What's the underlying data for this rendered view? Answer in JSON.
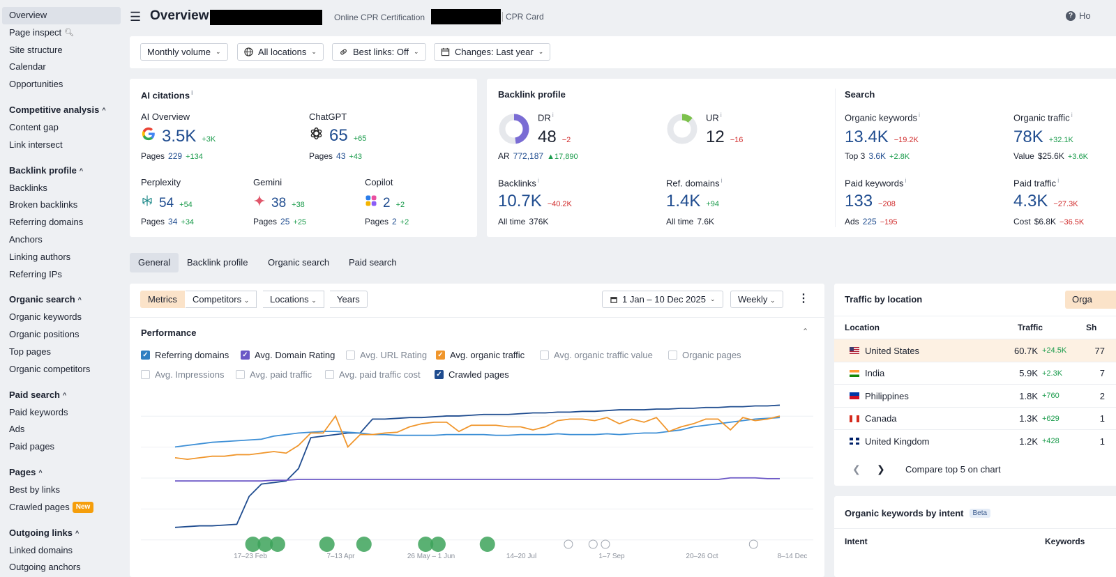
{
  "sidebar": {
    "items": [
      {
        "label": "Overview",
        "active": true
      },
      {
        "label": "Page inspect",
        "icon": "search-icon"
      },
      {
        "label": "Site structure"
      },
      {
        "label": "Calendar"
      },
      {
        "label": "Opportunities"
      }
    ],
    "sections": [
      {
        "title": "Competitive analysis",
        "items": [
          "Content gap",
          "Link intersect"
        ]
      },
      {
        "title": "Backlink profile",
        "items": [
          "Backlinks",
          "Broken backlinks",
          "Referring domains",
          "Anchors",
          "Linking authors",
          "Referring IPs"
        ]
      },
      {
        "title": "Organic search",
        "items": [
          "Organic keywords",
          "Organic positions",
          "Top pages",
          "Organic competitors"
        ]
      },
      {
        "title": "Paid search",
        "items": [
          "Paid keywords",
          "Ads",
          "Paid pages"
        ]
      },
      {
        "title": "Pages",
        "items": [
          "Best by links",
          "Crawled pages"
        ]
      },
      {
        "title": "Outgoing links",
        "items": [
          "Linked domains",
          "Outgoing anchors"
        ]
      }
    ],
    "new_badge": "New"
  },
  "header": {
    "title": "Overview:",
    "subtitle1": "Online CPR Certification",
    "subtitle2": "CPR Card",
    "help": "Ho"
  },
  "filters": {
    "volume": "Monthly volume",
    "locations": "All locations",
    "best_links": "Best links: Off",
    "changes": "Changes: Last year"
  },
  "ai_citations": {
    "title": "AI citations",
    "ai_overview": {
      "label": "AI Overview",
      "value": "3.5K",
      "delta": "+3K",
      "pages_label": "Pages",
      "pages": "229",
      "pages_delta": "+134"
    },
    "chatgpt": {
      "label": "ChatGPT",
      "value": "65",
      "delta": "+65",
      "pages_label": "Pages",
      "pages": "43",
      "pages_delta": "+43"
    },
    "perplexity": {
      "label": "Perplexity",
      "value": "54",
      "delta": "+54",
      "pages_label": "Pages",
      "pages": "34",
      "pages_delta": "+34"
    },
    "gemini": {
      "label": "Gemini",
      "value": "38",
      "delta": "+38",
      "pages_label": "Pages",
      "pages": "25",
      "pages_delta": "+25"
    },
    "copilot": {
      "label": "Copilot",
      "value": "2",
      "delta": "+2",
      "pages_label": "Pages",
      "pages": "2",
      "pages_delta": "+2"
    }
  },
  "backlink_profile": {
    "title": "Backlink profile",
    "dr": {
      "label": "DR",
      "value": "48",
      "delta": "−2",
      "ar_label": "AR",
      "ar": "772,187",
      "ar_delta": "▲17,890",
      "fill": 0.48
    },
    "ur": {
      "label": "UR",
      "value": "12",
      "delta": "−16",
      "fill": 0.12
    },
    "backlinks": {
      "label": "Backlinks",
      "value": "10.7K",
      "delta": "−40.2K",
      "sub_label": "All time",
      "sub": "376K"
    },
    "ref_domains": {
      "label": "Ref. domains",
      "value": "1.4K",
      "delta": "+94",
      "sub_label": "All time",
      "sub": "7.6K"
    }
  },
  "search": {
    "title": "Search",
    "organic_keywords": {
      "label": "Organic keywords",
      "value": "13.4K",
      "delta": "−19.2K",
      "sub_label": "Top 3",
      "sub": "3.6K",
      "sub_delta": "+2.8K"
    },
    "organic_traffic": {
      "label": "Organic traffic",
      "value": "78K",
      "delta": "+32.1K",
      "sub_label": "Value",
      "sub": "$25.6K",
      "sub_delta": "+3.6K"
    },
    "paid_keywords": {
      "label": "Paid keywords",
      "value": "133",
      "delta": "−208",
      "sub_label": "Ads",
      "sub": "225",
      "sub_delta": "−195"
    },
    "paid_traffic": {
      "label": "Paid traffic",
      "value": "4.3K",
      "delta": "−27.3K",
      "sub_label": "Cost",
      "sub": "$6.8K",
      "sub_delta": "−36.5K"
    }
  },
  "tabs": [
    "General",
    "Backlink profile",
    "Organic search",
    "Paid search"
  ],
  "chart_toolbar": {
    "metrics": "Metrics",
    "competitors": "Competitors",
    "locations": "Locations",
    "years": "Years",
    "date_range": "1 Jan – 10 Dec 2025",
    "interval": "Weekly"
  },
  "performance": {
    "title": "Performance",
    "legend": [
      {
        "label": "Referring domains",
        "checked": true,
        "color": "#2f7fc1"
      },
      {
        "label": "Avg. Domain Rating",
        "checked": true,
        "color": "#6b57c6"
      },
      {
        "label": "Avg. URL Rating",
        "checked": false,
        "color": "#c6cbd3"
      },
      {
        "label": "Avg. organic traffic",
        "checked": true,
        "color": "#f0962c"
      },
      {
        "label": "Avg. organic traffic value",
        "checked": false,
        "color": "#c6cbd3"
      },
      {
        "label": "Organic pages",
        "checked": false,
        "color": "#c6cbd3"
      },
      {
        "label": "Avg. Impressions",
        "checked": false,
        "color": "#c6cbd3"
      },
      {
        "label": "Avg. paid traffic",
        "checked": false,
        "color": "#c6cbd3"
      },
      {
        "label": "Avg. paid traffic cost",
        "checked": false,
        "color": "#c6cbd3"
      },
      {
        "label": "Crawled pages",
        "checked": true,
        "color": "#1f4c8f"
      }
    ]
  },
  "chart_data": {
    "type": "line",
    "x": [
      "w1",
      "w2",
      "w3",
      "w4",
      "w5",
      "w6",
      "w7",
      "w8",
      "w9",
      "w10",
      "w11",
      "w12",
      "w13",
      "w14",
      "w15",
      "w16",
      "w17",
      "w18",
      "w19",
      "w20",
      "w21",
      "w22",
      "w23",
      "w24",
      "w25",
      "w26",
      "w27",
      "w28",
      "w29",
      "w30",
      "w31",
      "w32",
      "w33",
      "w34",
      "w35",
      "w36",
      "w37",
      "w38",
      "w39",
      "w40",
      "w41",
      "w42",
      "w43",
      "w44",
      "w45",
      "w46",
      "w47",
      "w48",
      "w49",
      "w50"
    ],
    "tick_labels": [
      "17–23 Feb",
      "7–13 Apr",
      "26 May – 1 Jun",
      "14–20 Jul",
      "1–7 Sep",
      "20–26 Oct",
      "8–14 Dec"
    ],
    "ylim": [
      0,
      100
    ],
    "series": [
      {
        "name": "Crawled pages",
        "color": "#1f4c8f",
        "values": [
          10,
          10.5,
          11,
          11,
          11.5,
          12,
          30,
          38,
          39,
          40,
          48,
          68,
          69,
          70,
          71,
          71,
          80,
          80,
          80.5,
          81,
          81,
          81.5,
          82,
          82,
          82.5,
          83,
          83,
          83,
          83.5,
          84,
          84,
          84.5,
          84.5,
          85,
          85,
          85.5,
          86,
          86,
          86,
          86.5,
          86.5,
          87,
          87,
          87.5,
          87.5,
          88,
          88,
          88.5,
          88.5,
          89
        ]
      },
      {
        "name": "Referring domains",
        "color": "#3d8fd6",
        "values": [
          62,
          63,
          64,
          65,
          65.5,
          66,
          66.5,
          67,
          69,
          70,
          71,
          71.5,
          72,
          72,
          71.5,
          71,
          70,
          70,
          69.5,
          69.5,
          69.5,
          69.5,
          70,
          70,
          70,
          70,
          69.5,
          69.5,
          70,
          70,
          70,
          70.5,
          70,
          70,
          70,
          70.5,
          70,
          70.5,
          71,
          71,
          72,
          73,
          75,
          76,
          77,
          78,
          79,
          80,
          80.5,
          81
        ]
      },
      {
        "name": "Avg. organic traffic",
        "color": "#f0962c",
        "values": [
          55,
          54,
          55,
          56,
          56,
          57,
          57,
          58,
          59,
          58,
          63,
          71,
          71,
          82,
          62,
          70,
          70,
          71,
          71.5,
          75,
          77,
          78,
          78,
          72,
          76,
          76,
          76,
          75,
          75,
          73,
          75,
          79,
          80,
          80,
          79,
          81,
          77,
          80,
          78,
          81,
          72,
          75,
          77,
          80,
          80,
          73,
          81,
          79,
          80,
          82
        ]
      },
      {
        "name": "Avg. Domain Rating",
        "color": "#6b57c6",
        "values": [
          40,
          40,
          40,
          40,
          40,
          40,
          40,
          40,
          40.5,
          40.5,
          41,
          41,
          41,
          41,
          41,
          41,
          41,
          41,
          41,
          41,
          41,
          41,
          41,
          41,
          41,
          41,
          41,
          41,
          41,
          41,
          41,
          41,
          41,
          41,
          41,
          41,
          41,
          41,
          41,
          41,
          41,
          41,
          41,
          41,
          41,
          42,
          42,
          42,
          41.5,
          41.5
        ]
      }
    ]
  },
  "traffic_by_location": {
    "title": "Traffic by location",
    "button": "Orga",
    "columns": [
      "Location",
      "Traffic",
      "Sh"
    ],
    "rows": [
      {
        "country": "United States",
        "traffic": "60.7K",
        "delta": "+24.5K",
        "share": "77",
        "flag": "us"
      },
      {
        "country": "India",
        "traffic": "5.9K",
        "delta": "+2.3K",
        "share": "7",
        "flag": "in"
      },
      {
        "country": "Philippines",
        "traffic": "1.8K",
        "delta": "+760",
        "share": "2",
        "flag": "ph"
      },
      {
        "country": "Canada",
        "traffic": "1.3K",
        "delta": "+629",
        "share": "1",
        "flag": "ca"
      },
      {
        "country": "United Kingdom",
        "traffic": "1.2K",
        "delta": "+428",
        "share": "1",
        "flag": "gb"
      }
    ],
    "compare_label": "Compare top 5 on chart"
  },
  "intent": {
    "title": "Organic keywords by intent",
    "beta": "Beta",
    "col_intent": "Intent",
    "col_keywords": "Keywords"
  }
}
